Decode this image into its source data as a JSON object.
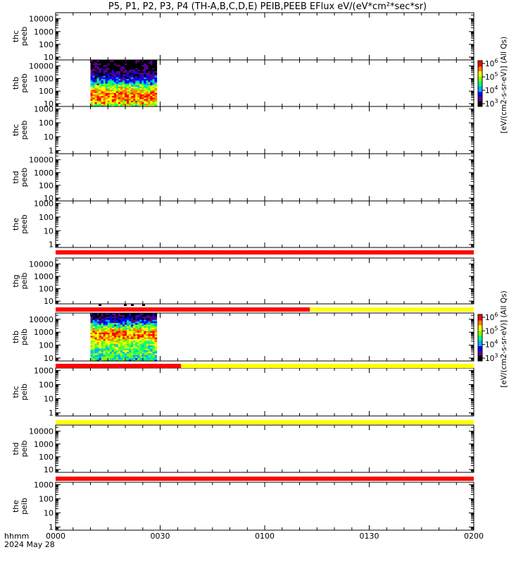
{
  "title": "P5, P1, P2, P3, P4 (TH-A,B,C,D,E) PEIB,PEEB EFlux eV/(eV*cm²*sec*sr)",
  "footer": {
    "axis_label": "hhmm",
    "date": "2024 May 28"
  },
  "colorbar": {
    "label": "[eV/(cm2-s-sr-eV)] (All Qs)",
    "ticks": [
      {
        "base": "10",
        "exp": "3"
      },
      {
        "base": "10",
        "exp": "4"
      },
      {
        "base": "10",
        "exp": "5"
      },
      {
        "base": "10",
        "exp": "6"
      }
    ],
    "colors": [
      "#000000",
      "#5a0090",
      "#0000ff",
      "#00b0ff",
      "#00ff80",
      "#80ff00",
      "#ffff00",
      "#ff8000",
      "#ff0000"
    ]
  },
  "chart_data": {
    "type": "heatmap",
    "x": {
      "ticks": [
        "0000",
        "0030",
        "0100",
        "0130",
        "0200"
      ],
      "range": [
        "00:00",
        "02:00"
      ]
    },
    "y_scale": "log",
    "panels": [
      {
        "label": [
          "thc",
          "peeb"
        ],
        "ylim": [
          6,
          30000
        ],
        "tick_labels": [
          "10",
          "100",
          "1000",
          "10000"
        ],
        "data_span": null
      },
      {
        "label": [
          "thb",
          "peeb"
        ],
        "ylim": [
          6,
          30000
        ],
        "tick_labels": [
          "10",
          "100",
          "1000",
          "10000"
        ],
        "data_span": [
          "00:10",
          "00:29"
        ],
        "peak_flux_energy_ev": [
          10,
          150
        ]
      },
      {
        "label": [
          "thc",
          "peeb"
        ],
        "ylim": [
          0.6,
          1500
        ],
        "tick_labels": [
          "1",
          "10",
          "100",
          "1000"
        ],
        "data_span": null
      },
      {
        "label": [
          "thd",
          "peeb"
        ],
        "ylim": [
          6,
          30000
        ],
        "tick_labels": [
          "10",
          "100",
          "1000",
          "10000"
        ],
        "data_span": null
      },
      {
        "label": [
          "the",
          "peeb"
        ],
        "ylim": [
          0.6,
          1500
        ],
        "tick_labels": [
          "1",
          "10",
          "100",
          "1000"
        ],
        "data_span": null
      },
      {
        "label": [
          "thg",
          "peib"
        ],
        "ylim": [
          6,
          30000
        ],
        "tick_labels": [
          "10",
          "100",
          "1000",
          "10000"
        ],
        "data_span": null
      },
      {
        "label": [
          "thb",
          "peib"
        ],
        "ylim": [
          6,
          30000
        ],
        "tick_labels": [
          "10",
          "100",
          "1000",
          "10000"
        ],
        "data_span": [
          "00:10",
          "00:29"
        ],
        "peak_flux_energy_ev": [
          300,
          1500
        ]
      },
      {
        "label": [
          "thc",
          "peib"
        ],
        "ylim": [
          0.6,
          1500
        ],
        "tick_labels": [
          "1",
          "10",
          "100",
          "1000"
        ],
        "data_span": null
      },
      {
        "label": [
          "thd",
          "peib"
        ],
        "ylim": [
          6,
          30000
        ],
        "tick_labels": [
          "10",
          "100",
          "1000",
          "10000"
        ],
        "data_span": null
      },
      {
        "label": [
          "the",
          "peib"
        ],
        "ylim": [
          0.6,
          1500
        ],
        "tick_labels": [
          "1",
          "10",
          "100",
          "1000"
        ],
        "data_span": null
      }
    ],
    "status_bars": [
      {
        "after_panel": 5,
        "segments": [
          {
            "from": "00:00",
            "to": "02:00",
            "color": "#ff0000"
          }
        ]
      },
      {
        "after_panel": 6,
        "segments": [
          {
            "from": "00:00",
            "to": "01:13",
            "color": "#ff0000"
          },
          {
            "from": "01:13",
            "to": "02:00",
            "color": "#ffff00"
          }
        ]
      },
      {
        "after_panel": 7,
        "segments": [
          {
            "from": "00:00",
            "to": "00:36",
            "color": "#ff0000"
          },
          {
            "from": "00:36",
            "to": "02:00",
            "color": "#ffff00"
          }
        ]
      },
      {
        "after_panel": 8,
        "segments": [
          {
            "from": "00:00",
            "to": "02:00",
            "color": "#ffff00"
          }
        ]
      },
      {
        "after_panel": 9,
        "segments": [
          {
            "from": "00:00",
            "to": "02:00",
            "color": "#ff0000"
          }
        ]
      }
    ]
  }
}
